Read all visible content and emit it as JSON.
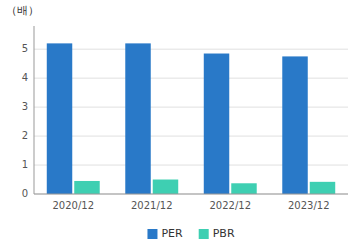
{
  "chart_data": {
    "type": "bar",
    "ylabel": "（배）",
    "categories": [
      "2020/12",
      "2021/12",
      "2022/12",
      "2023/12"
    ],
    "series": [
      {
        "name": "PER",
        "color": "#2979c8",
        "values": [
          5.2,
          5.2,
          4.85,
          4.75
        ]
      },
      {
        "name": "PBR",
        "color": "#3ecfb2",
        "values": [
          0.45,
          0.5,
          0.37,
          0.42
        ]
      }
    ],
    "ylim": [
      0,
      5.8
    ],
    "yticks": [
      0,
      1,
      2,
      3,
      4,
      5
    ],
    "grid": true,
    "legend": "bottom"
  }
}
